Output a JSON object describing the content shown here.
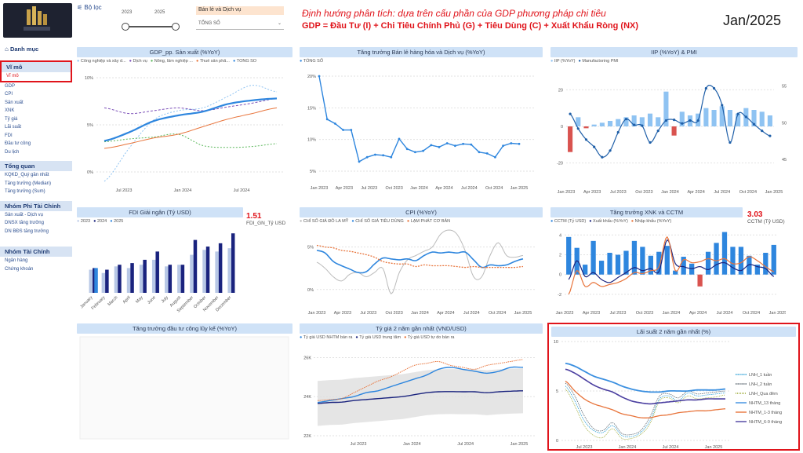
{
  "filter": {
    "label": "Bộ lọc",
    "year_from": "2023",
    "year_to": "2025",
    "slider_from_pct": 0,
    "slider_to_pct": 100,
    "category_label": "Bán lẻ và Dịch vụ",
    "category_select": "TỔNG SỐ"
  },
  "header": {
    "subtitle": "Định hướng phân tích: dựa trên cấu phần của GDP phương pháp chi tiêu",
    "formula": "GDP = Đầu Tư (I) + Chi Tiêu Chính Phủ (G) + Tiêu Dùng (C) + Xuất Khẩu Ròng (NX)",
    "period": "Jan/2025"
  },
  "sidebar": {
    "menu_title": "Danh mục",
    "sections": [
      {
        "title": "Vĩ mô",
        "items": [
          "Vĩ mô",
          "GDP",
          "CPI",
          "Sản xuất",
          "XNK",
          "Tỷ giá",
          "Lãi suất",
          "FDI",
          "Đầu tư công",
          "Du lịch"
        ]
      },
      {
        "title": "Tổng quan",
        "items": [
          "KQKD_Quý gần nhất",
          "Tăng trưởng (Median)",
          "Tăng trưởng (Sum)"
        ]
      },
      {
        "title": "Nhóm Phi Tài Chính",
        "items": [
          "Sản xuất - Dịch vụ",
          "DNSX tăng trưởng",
          "DN BĐS tăng trưởng"
        ]
      },
      {
        "title": "Nhóm Tài Chính",
        "items": [
          "Ngân hàng",
          "Chứng khoán"
        ]
      }
    ]
  },
  "colors": {
    "primary": "#2e86de",
    "navy": "#1a237e",
    "light_blue": "#8fc3f2",
    "red": "#e0141b",
    "orange": "#e8743b",
    "green": "#5cb85c",
    "gray": "#aaaaaa"
  },
  "chart_data": [
    {
      "id": "gdp",
      "type": "line",
      "title": "GDP_pp. Sản xuất (%YoY)",
      "legend": [
        "Công nghiệp và xây d...",
        "Dịch vụ",
        "Nông, lâm nghiệp ...",
        "Thuế sản phẩ...",
        "TỔNG SỐ"
      ],
      "yticks": [
        "0%",
        "5%",
        "10%"
      ],
      "xticks": [
        "Jul 2023",
        "Jan 2024",
        "Jul 2024"
      ],
      "ylim": [
        -1,
        10.5
      ],
      "x": [
        0,
        1,
        2,
        3,
        4,
        5,
        6,
        7
      ],
      "series": [
        {
          "name": "Công nghiệp và xây d...",
          "values": [
            -1,
            2.5,
            5.5,
            6.5,
            6.8,
            8,
            9.2,
            8.5
          ]
        },
        {
          "name": "Dịch vụ",
          "values": [
            6.8,
            6.2,
            6.5,
            6.8,
            6.5,
            6.9,
            7.3,
            7.8
          ]
        },
        {
          "name": "Nông, lâm nghiệp ...",
          "values": [
            3.2,
            3.5,
            3.7,
            4.0,
            2.8,
            2.6,
            2.7,
            3.0
          ]
        },
        {
          "name": "Thuế sản phẩ...",
          "values": [
            2.5,
            3.0,
            3.6,
            4.0,
            4.8,
            5.6,
            6.2,
            6.8
          ]
        },
        {
          "name": "TỔNG SỐ",
          "values": [
            3.3,
            4.2,
            5.4,
            6.0,
            6.4,
            7.2,
            7.6,
            7.8
          ]
        }
      ]
    },
    {
      "id": "retail",
      "type": "line",
      "title": "Tăng trưởng Bán lẻ hàng hóa và Dịch vụ (%YoY)",
      "legend": [
        "TỔNG SỐ"
      ],
      "yticks": [
        "5%",
        "10%",
        "15%",
        "20%"
      ],
      "xticks": [
        "Jan 2023",
        "Apr 2023",
        "Jul 2023",
        "Oct 2023",
        "Jan 2024",
        "Apr 2024",
        "Jul 2024",
        "Oct 2024",
        "Jan 2025"
      ],
      "ylim": [
        4,
        21
      ],
      "values": [
        20,
        13.2,
        12.5,
        11.5,
        11.5,
        6.5,
        7.2,
        7.6,
        7.5,
        7.2,
        10.1,
        8.5,
        8.0,
        8.2,
        9.1,
        8.8,
        9.4,
        9.0,
        9.3,
        9.2,
        8.0,
        7.8,
        7.2,
        9.0,
        9.4,
        9.3
      ]
    },
    {
      "id": "iip",
      "type": "bar",
      "title": "IIP (%YoY) & PMI",
      "legend": [
        "IIP (%YoY)",
        "Manufactoring PMI"
      ],
      "yticks_left": [
        "-20",
        "0",
        "20"
      ],
      "yticks_right": [
        "45",
        "50",
        "55"
      ],
      "xticks": [
        "Jan 2023",
        "Apr 2023",
        "Jul 2023",
        "Oct 2023",
        "Jan 2024",
        "Apr 2024",
        "Jul 2024",
        "Oct 2024",
        "Jan 2025"
      ],
      "bars": [
        -14,
        5,
        -1,
        1,
        2,
        3,
        4,
        5,
        6,
        5,
        7,
        5,
        19,
        -5,
        8,
        6,
        7,
        10,
        9,
        11,
        9,
        7,
        10,
        9,
        8,
        6
      ],
      "pmi": [
        51.2,
        49.2,
        47.7,
        46.7,
        45.3,
        46.2,
        48.7,
        50.5,
        49.7,
        49.6,
        47.3,
        48.9,
        50.3,
        50.4,
        49.9,
        50.3,
        50.3,
        54.7,
        54.7,
        52.4,
        47.3,
        51.2,
        50.8,
        49.8,
        48.9,
        48.2
      ]
    },
    {
      "id": "fdi",
      "type": "bar",
      "title": "FDI Giải ngân (Tỷ USD)",
      "legend": [
        "2023",
        "2024",
        "2025"
      ],
      "categories": [
        "January",
        "February",
        "March",
        "April",
        "May",
        "June",
        "July",
        "August",
        "September",
        "October",
        "November",
        "December"
      ],
      "series": [
        {
          "name": "2023",
          "values": [
            1.4,
            1.2,
            1.6,
            1.5,
            1.7,
            2.0,
            1.6,
            1.7,
            2.3,
            2.6,
            2.5,
            2.7
          ]
        },
        {
          "name": "2024",
          "values": [
            1.5,
            1.4,
            1.7,
            1.8,
            2.0,
            2.5,
            1.7,
            1.7,
            3.2,
            2.8,
            3.0,
            3.6
          ]
        },
        {
          "name": "2025",
          "values": [
            1.5,
            null,
            null,
            null,
            null,
            null,
            null,
            null,
            null,
            null,
            null,
            null
          ]
        }
      ],
      "ymax": 3.8,
      "kpi_value": "1.51",
      "kpi_label": "FDI_GN_Tỷ USD"
    },
    {
      "id": "cpi",
      "type": "line",
      "title": "CPI (%YoY)",
      "legend": [
        "CHỈ SỐ GIÁ ĐÔ LA MỸ",
        "CHỈ SỐ GIÁ TIÊU DÙNG",
        "LẠM PHÁT CƠ BẢN"
      ],
      "yticks": [
        "0%",
        "5%"
      ],
      "xticks": [
        "Jan 2023",
        "Apr 2023",
        "Jul 2023",
        "Oct 2023",
        "Jan 2024",
        "Apr 2024",
        "Jul 2024",
        "Oct 2024",
        "Jan 2025"
      ],
      "ylim": [
        -1.5,
        7
      ],
      "series": [
        {
          "name": "CHỈ SỐ GIÁ ĐÔ LA MỸ",
          "values": [
            3.2,
            2.5,
            1.5,
            1.0,
            1.8,
            2.0,
            1.5,
            2.0,
            2.5,
            -0.5,
            2.0,
            3.5,
            4.0,
            4.5,
            5.0,
            6.5,
            7.0,
            6.5,
            4.5,
            1.5,
            1.5,
            4.0,
            5.5,
            4.0,
            3.8,
            4.0
          ]
        },
        {
          "name": "CHỈ SỐ GIÁ TIÊU DÙNG",
          "values": [
            4.6,
            4.3,
            3.3,
            2.8,
            2.4,
            2.0,
            2.1,
            3.0,
            3.7,
            3.6,
            3.5,
            3.6,
            3.4,
            4.0,
            4.4,
            4.3,
            4.4,
            4.3,
            4.4,
            3.5,
            2.6,
            2.9,
            2.8,
            2.9,
            3.3,
            3.6
          ]
        },
        {
          "name": "LẠM PHÁT CƠ BẢN",
          "values": [
            5.2,
            5.0,
            4.9,
            4.6,
            4.5,
            4.3,
            4.1,
            3.8,
            3.3,
            3.1,
            3.0,
            3.0,
            2.7,
            2.9,
            2.8,
            2.8,
            2.8,
            2.7,
            2.6,
            2.7,
            2.6,
            2.6,
            2.6,
            2.6,
            2.6,
            2.7
          ]
        }
      ]
    },
    {
      "id": "xnk",
      "type": "bar",
      "title": "Tăng trưởng XNK và CCTM",
      "legend": [
        "CCTM (Tỷ USD)",
        "Xuất khẩu (%YoY)",
        "Nhập khẩu (%YoY)"
      ],
      "yticks_left": [
        "-2",
        "0",
        "2",
        "4"
      ],
      "xticks": [
        "Jan 2023",
        "Apr 2023",
        "Jul 2023",
        "Oct 2023",
        "Jan 2024",
        "Apr 2024",
        "Jul 2024",
        "Oct 2024",
        "Jan 2025"
      ],
      "bars": [
        3.8,
        2.7,
        1.0,
        3.4,
        1.4,
        2.2,
        2.0,
        2.4,
        3.4,
        2.8,
        1.9,
        2.3,
        2.9,
        0.4,
        1.8,
        1.1,
        -1.2,
        2.3,
        3.2,
        4.3,
        2.8,
        2.8,
        1.9,
        1.0,
        2.2,
        3.0
      ],
      "export": [
        -0.5,
        1.4,
        -0.2,
        0.2,
        -0.5,
        -0.8,
        -0.3,
        0.2,
        0.7,
        0.4,
        0.6,
        0.3,
        3.5,
        1.1,
        0.8,
        0.6,
        0.8,
        0.5,
        1.0,
        1.2,
        0.7,
        0.4,
        1.0,
        0.8,
        0.6,
        -0.2
      ],
      "import": [
        -2.0,
        0.4,
        -1.2,
        -0.8,
        -1.2,
        -1.0,
        -0.8,
        -0.4,
        0.2,
        0.1,
        0.4,
        0.8,
        3.8,
        0.4,
        1.5,
        1.2,
        1.3,
        1.6,
        1.4,
        1.6,
        1.1,
        1.2,
        1.8,
        1.4,
        0.8,
        0.3
      ],
      "kpi_value": "3.03",
      "kpi_label": "CCTM (Tỷ USD)"
    },
    {
      "id": "dtc",
      "type": "line",
      "title": "Tăng trưởng đầu tư công lũy kế (%YoY)"
    },
    {
      "id": "fx",
      "type": "line",
      "title": "Tỷ giá 2 năm gần nhất (VND/USD)",
      "legend": [
        "Tỷ giá USD NHTM bán ra",
        "Tỷ giá USD trung tâm",
        "Tỷ giá USD tự do bán ra"
      ],
      "yticks": [
        "22K",
        "24K",
        "26K"
      ],
      "xticks": [
        "Jul 2023",
        "Jan 2024",
        "Jul 2024",
        "Jan 2025"
      ],
      "ylim": [
        22000,
        26500
      ],
      "series": [
        {
          "name": "Tỷ giá USD NHTM bán ra",
          "values": [
            23700,
            23800,
            23900,
            24000,
            24200,
            24300,
            24500,
            24700,
            24900,
            25100,
            25400,
            25500,
            25400,
            25300,
            25200,
            25300,
            25500,
            25500
          ]
        },
        {
          "name": "Tỷ giá USD trung tâm",
          "values": [
            23650,
            23700,
            23720,
            23800,
            23850,
            23900,
            23950,
            24000,
            24100,
            24200,
            24250,
            24260,
            24250,
            24250,
            24200,
            24250,
            24280,
            24300
          ]
        },
        {
          "name": "Tỷ giá USD tự do bán ra",
          "values": [
            23800,
            23850,
            23900,
            24200,
            24500,
            24800,
            25000,
            25300,
            25600,
            25700,
            25800,
            25600,
            25500,
            25400,
            25600,
            25700,
            25800,
            25900
          ]
        }
      ]
    },
    {
      "id": "rates",
      "type": "line",
      "title": "Lãi suất 2 năm gần nhất (%)",
      "legend": [
        "LNH_1 tuần",
        "LNH_2 tuần",
        "LNH_Qua đêm",
        "NHTM_13 tháng",
        "NHTM_1-3 tháng",
        "NHTM_6-9 tháng"
      ],
      "yticks": [
        "0",
        "5",
        "10"
      ],
      "xticks": [
        "Jul 2023",
        "Jan 2024",
        "Jul 2024",
        "Jan 2025"
      ],
      "ylim": [
        0,
        10
      ],
      "series": [
        {
          "name": "LNH_1 tuần",
          "values": [
            5.5,
            4.0,
            2.0,
            1.0,
            0.8,
            1.5,
            0.5,
            0.4,
            0.8,
            2.0,
            4.2,
            4.5,
            4.0,
            4.8,
            4.5,
            4.6,
            4.7,
            4.8
          ]
        },
        {
          "name": "LNH_2 tuần",
          "values": [
            5.8,
            4.5,
            2.5,
            1.2,
            1.0,
            1.8,
            0.7,
            0.6,
            1.0,
            2.4,
            4.5,
            4.7,
            4.3,
            5.0,
            4.7,
            4.8,
            4.9,
            5.0
          ]
        },
        {
          "name": "LNH_Qua đêm",
          "values": [
            5.2,
            3.5,
            1.5,
            0.5,
            0.3,
            1.2,
            0.2,
            0.2,
            0.6,
            1.7,
            4.0,
            4.3,
            3.8,
            4.5,
            4.2,
            4.3,
            4.4,
            4.6
          ]
        },
        {
          "name": "NHTM_13 tháng",
          "values": [
            7.8,
            7.5,
            7.0,
            6.5,
            6.2,
            5.9,
            5.5,
            5.2,
            5.0,
            4.9,
            4.9,
            5.0,
            5.0,
            5.0,
            5.1,
            5.1,
            5.1,
            5.2
          ]
        },
        {
          "name": "NHTM_1-3 tháng",
          "values": [
            6.0,
            5.0,
            4.2,
            3.7,
            3.4,
            3.1,
            2.7,
            2.5,
            2.3,
            2.3,
            2.5,
            2.6,
            2.8,
            2.9,
            3.0,
            3.0,
            3.1,
            3.2
          ]
        },
        {
          "name": "NHTM_6-9 tháng",
          "values": [
            7.2,
            6.8,
            6.2,
            5.6,
            5.2,
            4.9,
            4.4,
            4.0,
            3.8,
            3.7,
            3.8,
            3.9,
            4.0,
            4.1,
            4.1,
            4.2,
            4.2,
            4.2
          ]
        }
      ]
    }
  ]
}
